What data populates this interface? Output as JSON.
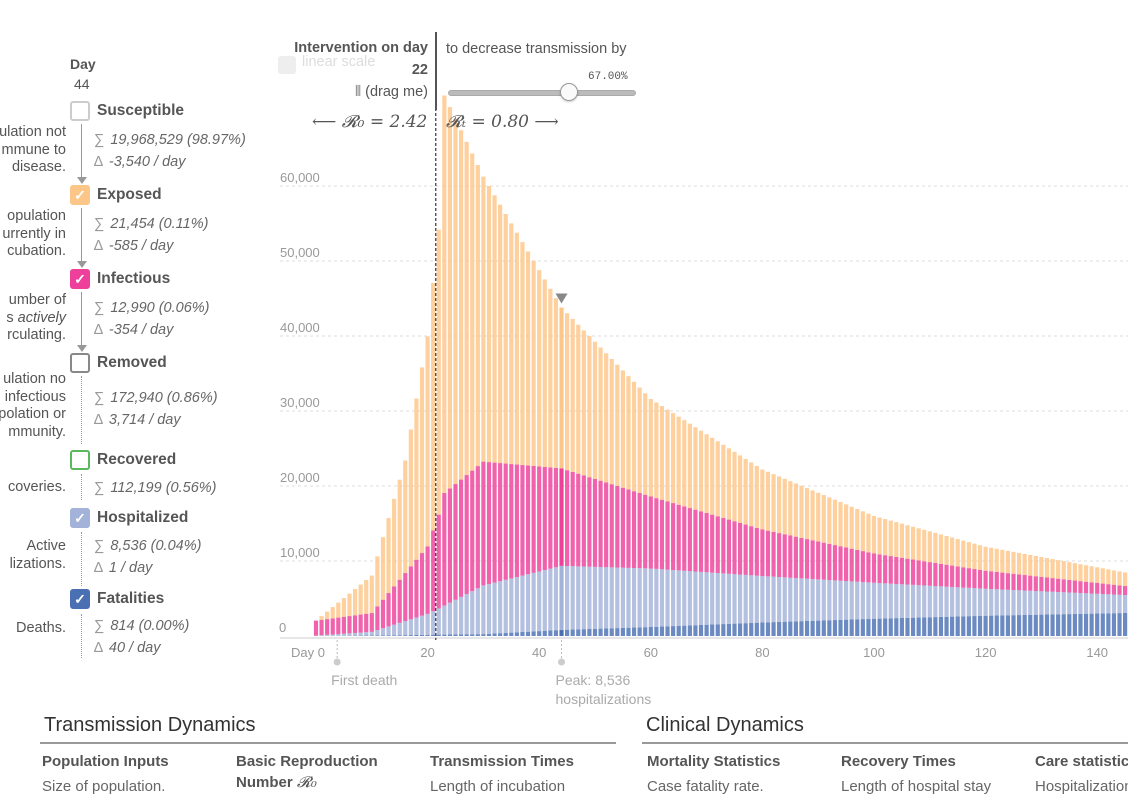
{
  "day": {
    "label": "Day",
    "value": "44"
  },
  "legend": [
    {
      "key": "susceptible",
      "label": "Susceptible",
      "checked": false,
      "color": "#cccccc",
      "desc": "ulation not\nmmune to\ndisease.",
      "total": "19,968,529 (98.97%)",
      "delta": "-3,540 / day"
    },
    {
      "key": "exposed",
      "label": "Exposed",
      "checked": true,
      "color": "#fcc688",
      "desc": "opulation\nurrently in\ncubation.",
      "total": "21,454 (0.11%)",
      "delta": "-585 / day"
    },
    {
      "key": "infectious",
      "label": "Infectious",
      "checked": true,
      "color": "#ee3f9a",
      "desc_1": "umber of",
      "desc_2a": "s ",
      "desc_2b": "actively",
      "desc_3": "rculating.",
      "total": "12,990 (0.06%)",
      "delta": "-354 / day"
    },
    {
      "key": "removed",
      "label": "Removed",
      "checked": false,
      "color": "#888888",
      "desc": "ulation no\ninfectious\npolation or\nmmunity.",
      "total": "172,940 (0.86%)",
      "delta": "3,714 / day"
    },
    {
      "key": "recovered",
      "label": "Recovered",
      "checked": false,
      "color": "#5cb85c",
      "desc": "coveries.",
      "total": "112,199 (0.56%)"
    },
    {
      "key": "hospitalized",
      "label": "Hospitalized",
      "checked": true,
      "color": "#a3b2d8",
      "desc": "Active\nlizations.",
      "total": "8,536 (0.04%)",
      "delta": "1 / day"
    },
    {
      "key": "fatalities",
      "label": "Fatalities",
      "checked": true,
      "color": "#4a70b3",
      "desc": "Deaths.",
      "total": "814 (0.00%)",
      "delta": "40 / day"
    }
  ],
  "controls": {
    "ghost_label": "linear scale",
    "intervention_title": "Intervention on day",
    "intervention_day": "22",
    "drag_label": "(drag me)",
    "r0_text": "⟵ 𝓡₀ = 2.42",
    "rt_text": "𝓡ₜ = 0.80 ⟶",
    "decrease_text": "to decrease transmission by",
    "slider_pct": "67.00%",
    "slider_value": 0.67
  },
  "chart_data": {
    "type": "bar",
    "stacked": true,
    "x_range": [
      0,
      147
    ],
    "ylim": [
      0,
      65000
    ],
    "y_ticks": [
      "0",
      "10,000",
      "20,000",
      "30,000",
      "40,000",
      "50,000",
      "60,000"
    ],
    "x_ticks": [
      "Day 0",
      "20",
      "40",
      "60",
      "80",
      "100",
      "120",
      "140"
    ],
    "grid": true,
    "intervention_day": 22,
    "highlight_day": 44,
    "series": [
      {
        "name": "Fatalities",
        "color": "#4a70b3",
        "points": [
          [
            0,
            0
          ],
          [
            10,
            60
          ],
          [
            20,
            150
          ],
          [
            22,
            180
          ],
          [
            30,
            250
          ],
          [
            44,
            814
          ],
          [
            60,
            1200
          ],
          [
            80,
            1800
          ],
          [
            100,
            2300
          ],
          [
            120,
            2700
          ],
          [
            147,
            3100
          ]
        ]
      },
      {
        "name": "Hospitalized",
        "color": "#a3b2d8",
        "points": [
          [
            0,
            50
          ],
          [
            10,
            500
          ],
          [
            20,
            2800
          ],
          [
            22,
            3500
          ],
          [
            30,
            6500
          ],
          [
            44,
            8536
          ],
          [
            60,
            7800
          ],
          [
            80,
            6200
          ],
          [
            100,
            4800
          ],
          [
            120,
            3600
          ],
          [
            147,
            2300
          ]
        ]
      },
      {
        "name": "Infectious",
        "color": "#ee3f9a",
        "points": [
          [
            0,
            2000
          ],
          [
            10,
            2500
          ],
          [
            20,
            9000
          ],
          [
            22,
            12500
          ],
          [
            23,
            15000
          ],
          [
            30,
            16500
          ],
          [
            44,
            12990
          ],
          [
            60,
            9600
          ],
          [
            80,
            6200
          ],
          [
            100,
            3900
          ],
          [
            120,
            2400
          ],
          [
            147,
            1100
          ]
        ]
      },
      {
        "name": "Exposed",
        "color": "#fcc688",
        "points": [
          [
            0,
            0
          ],
          [
            10,
            5000
          ],
          [
            16,
            15000
          ],
          [
            20,
            28000
          ],
          [
            22,
            38000
          ],
          [
            23,
            53000
          ],
          [
            30,
            38000
          ],
          [
            44,
            21454
          ],
          [
            60,
            13000
          ],
          [
            80,
            8000
          ],
          [
            100,
            5000
          ],
          [
            120,
            3200
          ],
          [
            147,
            1700
          ]
        ]
      }
    ],
    "annotations": [
      {
        "day": 2,
        "text": "First death"
      },
      {
        "day": 44,
        "text_1": "Peak: 8,536",
        "text_2": "hospitalizations"
      }
    ]
  },
  "sections": [
    {
      "title": "Transmission Dynamics",
      "columns": [
        {
          "head": "Population Inputs",
          "text": "Size of population."
        },
        {
          "head": "Basic Reproduction",
          "head_2": "Number",
          "math": "𝓡₀"
        },
        {
          "head": "Transmission Times",
          "text": "Length of incubation"
        }
      ]
    },
    {
      "title": "Clinical Dynamics",
      "columns": [
        {
          "head": "Mortality Statistics",
          "text": "Case fatality rate."
        },
        {
          "head": "Recovery Times",
          "text": "Length of hospital stay"
        },
        {
          "head": "Care statistics",
          "text": "Hospitalization rate."
        }
      ]
    }
  ]
}
